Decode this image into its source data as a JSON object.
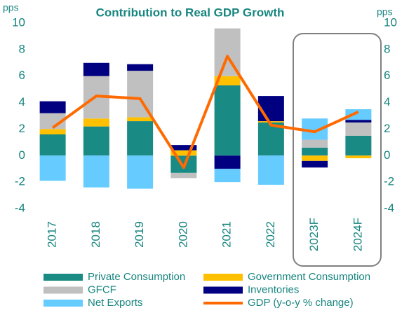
{
  "chart_data": {
    "type": "bar",
    "stacked": true,
    "title": "Contribution to Real GDP Growth",
    "ylabel": "pps",
    "y2label": "pps",
    "categories": [
      "2017",
      "2018",
      "2019",
      "2020",
      "2021",
      "2022",
      "2023F",
      "2024F"
    ],
    "series": [
      {
        "name": "Private Consumption",
        "color": "#1a8a84",
        "values": [
          1.6,
          2.2,
          2.6,
          -1.3,
          5.3,
          2.5,
          0.6,
          1.5
        ]
      },
      {
        "name": "Government Consumption",
        "color": "#ffc000",
        "values": [
          0.4,
          0.6,
          0.3,
          0.4,
          0.7,
          0.1,
          -0.4,
          -0.2
        ]
      },
      {
        "name": "GFCF",
        "color": "#c0c0c0",
        "values": [
          1.2,
          3.2,
          3.5,
          -0.4,
          3.6,
          0,
          0.6,
          1.0
        ]
      },
      {
        "name": "Inventories",
        "color": "#000080",
        "values": [
          0.9,
          1.0,
          0.5,
          0.4,
          -1.0,
          1.9,
          -0.5,
          0.2
        ]
      },
      {
        "name": "Net Exports",
        "color": "#66ccff",
        "values": [
          -1.9,
          -2.4,
          -2.5,
          0,
          -1.0,
          -2.2,
          1.6,
          0.8
        ]
      },
      {
        "name": "GDP (y-o-y % change)",
        "color": "#ff6a00",
        "type": "line",
        "values": [
          2.1,
          4.5,
          4.3,
          -0.9,
          7.5,
          2.3,
          1.8,
          3.3
        ]
      }
    ],
    "ylim": [
      -4,
      10
    ],
    "yticks": [
      -4,
      -2,
      0,
      2,
      4,
      6,
      8,
      10
    ],
    "y2lim": [
      -4,
      10
    ],
    "y2ticks": [
      -4,
      -2,
      0,
      2,
      4,
      6,
      8,
      10
    ],
    "legend": "bottom",
    "grid": false
  }
}
